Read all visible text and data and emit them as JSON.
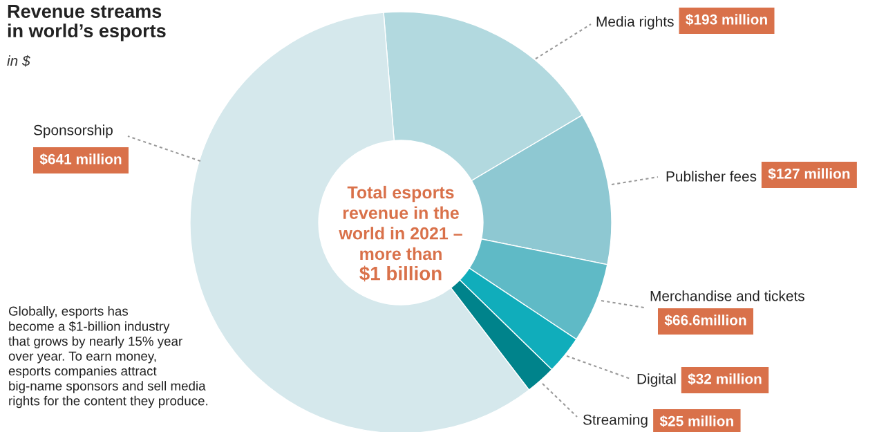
{
  "chart_data": {
    "type": "donut",
    "title": "Revenue streams\nin world’s esports",
    "subtitle": "in $",
    "categories": [
      "Media rights",
      "Publisher fees",
      "Merchandise and tickets",
      "Digital",
      "Streaming",
      "Sponsorship"
    ],
    "values": [
      193,
      127,
      66.6,
      32,
      25,
      641
    ],
    "value_labels": [
      "$193 million",
      "$127 million",
      "$66.6million",
      "$32 million",
      "$25 million",
      "$641 million"
    ],
    "colors": [
      "#b2d9df",
      "#8ec8d2",
      "#5fbac6",
      "#10adbb",
      "#00838b",
      "#d5e8ec"
    ],
    "annotations": [
      "Total esports\nrevenue in the\nworld in 2021 –\nmore than",
      "$1 billion",
      "Globally, esports has\nbecome a $1-billion industry\nthat grows by nearly 15% year\nover year. To earn money,\nesports companies attract\nbig-name sponsors and sell media\nrights for the content they produce."
    ],
    "legend": false
  }
}
